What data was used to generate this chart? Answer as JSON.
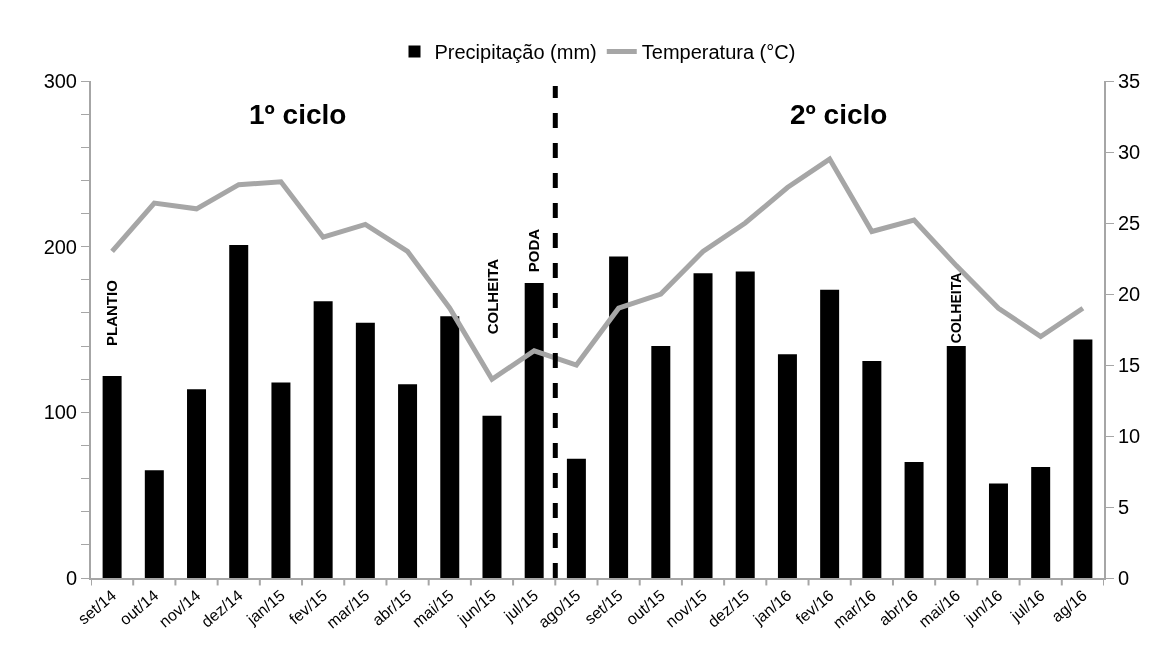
{
  "chart_data": {
    "type": "bar",
    "categories": [
      "set/14",
      "out/14",
      "nov/14",
      "dez/14",
      "jan/15",
      "fev/15",
      "mar/15",
      "abr/15",
      "mai/15",
      "jun/15",
      "jul/15",
      "ago/15",
      "set/15",
      "out/15",
      "nov/15",
      "dez/15",
      "jan/16",
      "fev/16",
      "mar/16",
      "abr/16",
      "mai/16",
      "jun/16",
      "jul/16",
      "ag/16"
    ],
    "series": [
      {
        "name": "Precipitação (mm)",
        "color": "#000000",
        "values": [
          122,
          65,
          114,
          201,
          118,
          167,
          154,
          117,
          158,
          98,
          178,
          72,
          194,
          140,
          184,
          185,
          135,
          174,
          131,
          70,
          140,
          57,
          67,
          144
        ]
      },
      {
        "name": "Temperatura (°C)",
        "type": "line",
        "axis": "y2",
        "color": "#a6a6a6",
        "marker": "none",
        "line_style": "solid",
        "values": [
          23,
          26.4,
          26,
          27.7,
          27.9,
          24,
          24.9,
          23,
          19,
          14,
          16,
          15,
          19,
          20,
          23,
          25,
          27.5,
          29.5,
          24.4,
          25.2,
          22,
          19,
          17,
          19
        ]
      }
    ],
    "ylim": [
      0,
      300
    ],
    "yticks": [
      0,
      {
        "value": 20,
        "label": null
      },
      {
        "value": 40,
        "label": null
      },
      {
        "value": 60,
        "label": null
      },
      {
        "value": 80,
        "label": null
      },
      100,
      {
        "value": 120,
        "label": null
      },
      {
        "value": 140,
        "label": null
      },
      {
        "value": 160,
        "label": null
      },
      {
        "value": 180,
        "label": null
      },
      200,
      {
        "value": 220,
        "label": null
      },
      {
        "value": 240,
        "label": null
      },
      {
        "value": 260,
        "label": null
      },
      {
        "value": 280,
        "label": null
      },
      300
    ],
    "y2lim": [
      0,
      35
    ],
    "y2ticks": [
      0,
      5,
      10,
      15,
      20,
      25,
      30,
      35
    ],
    "annotations": [
      "1º ciclo",
      "2º ciclo",
      "PLANTIO",
      "COLHEITA",
      "PODA",
      "COLHEITA"
    ],
    "legend": "top"
  }
}
